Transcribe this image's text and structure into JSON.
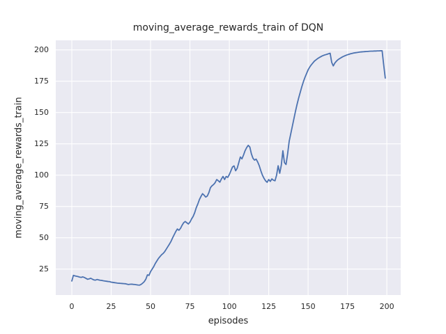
{
  "chart_data": {
    "type": "line",
    "title": "moving_average_rewards_train of DQN",
    "xlabel": "episodes",
    "ylabel": "moving_average_rewards_train",
    "x_ticks": [
      0,
      25,
      50,
      75,
      100,
      125,
      150,
      175,
      200
    ],
    "y_ticks": [
      25,
      50,
      75,
      100,
      125,
      150,
      175,
      200
    ],
    "xlim": [
      -10.2,
      208.8
    ],
    "ylim": [
      4.3,
      207.6
    ],
    "grid": true,
    "legend": "none",
    "style": {
      "axes_background": "#EAEAF2",
      "grid_color": "#FFFFFF",
      "line_color": "#4C72B0",
      "text_color": "#262626",
      "line_width": 1.8
    },
    "series": [
      {
        "name": "moving_average_rewards_train",
        "x_start": 0,
        "x_step": 1,
        "values": [
          15.5,
          20.0,
          19.6,
          19.3,
          19.0,
          18.6,
          18.4,
          18.8,
          18.3,
          17.6,
          16.9,
          17.2,
          17.7,
          17.0,
          16.4,
          16.2,
          16.7,
          16.4,
          16.1,
          16.0,
          15.7,
          15.5,
          15.3,
          15.1,
          15.0,
          14.6,
          14.4,
          14.2,
          14.0,
          13.8,
          13.7,
          13.6,
          13.5,
          13.4,
          13.3,
          13.0,
          12.7,
          12.9,
          13.0,
          12.8,
          12.7,
          12.5,
          12.3,
          12.2,
          12.8,
          13.8,
          15.0,
          17.0,
          20.4,
          20.0,
          23.0,
          25.0,
          27.0,
          29.5,
          31.5,
          33.5,
          35.0,
          36.5,
          37.5,
          39.0,
          41.0,
          43.0,
          45.0,
          47.2,
          50.0,
          52.5,
          55.0,
          57.0,
          56.0,
          57.5,
          60.0,
          62.0,
          63.0,
          62.0,
          61.0,
          62.5,
          65.0,
          67.0,
          70.0,
          74.0,
          77.0,
          80.5,
          83.0,
          85.2,
          84.0,
          82.5,
          83.3,
          86.0,
          90.0,
          91.5,
          92.5,
          94.0,
          96.5,
          95.5,
          94.4,
          97.0,
          99.0,
          96.5,
          99.0,
          98.2,
          100.5,
          103.5,
          106.5,
          107.4,
          103.5,
          105.5,
          110.0,
          114.5,
          113.0,
          116.0,
          119.5,
          122.0,
          123.8,
          122.5,
          117.0,
          113.5,
          112.0,
          112.8,
          110.5,
          107.5,
          103.5,
          100.0,
          97.5,
          95.5,
          94.3,
          96.5,
          95.0,
          97.0,
          96.0,
          95.5,
          100.0,
          107.5,
          101.5,
          108.0,
          119.5,
          110.0,
          108.5,
          117.0,
          127.0,
          133.0,
          139.0,
          145.0,
          151.0,
          156.5,
          161.5,
          166.0,
          170.5,
          174.5,
          178.0,
          181.0,
          184.0,
          186.2,
          188.0,
          189.5,
          191.0,
          192.0,
          193.0,
          193.8,
          194.5,
          195.2,
          195.7,
          196.1,
          196.5,
          196.9,
          197.3,
          190.0,
          187.2,
          189.5,
          191.0,
          192.2,
          193.0,
          193.8,
          194.5,
          195.1,
          195.6,
          196.1,
          196.5,
          196.9,
          197.2,
          197.5,
          197.7,
          197.9,
          198.1,
          198.3,
          198.4,
          198.5,
          198.6,
          198.7,
          198.8,
          198.9,
          199.0,
          199.0,
          199.1,
          199.1,
          199.2,
          199.2,
          199.3,
          199.3,
          188.0,
          177.5
        ]
      }
    ]
  }
}
